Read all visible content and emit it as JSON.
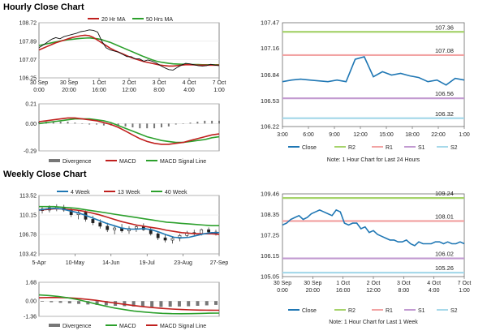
{
  "titles": {
    "hourly": "Hourly Close Chart",
    "weekly": "Weekly Close Chart"
  },
  "colors": {
    "price": "#111111",
    "red": "#c0201e",
    "green": "#2ca02c",
    "blue": "#1f77b4",
    "close_line": "#1f77b4",
    "r2": "#a6d36b",
    "r1": "#f2a3a3",
    "s1": "#c29ad1",
    "s2": "#a7d9ea",
    "divergence": "#777777"
  },
  "chart_data": [
    {
      "id": "hourly-price",
      "type": "line",
      "legend": [
        "20 Hr MA",
        "50 Hrs MA"
      ],
      "yticks": [
        "108.72",
        "107.89",
        "107.07",
        "106.25"
      ],
      "ylim": [
        106.25,
        108.72
      ],
      "xticks": [
        [
          "30 Sep",
          "0:00"
        ],
        [
          "30 Sep",
          "20:00"
        ],
        [
          "1 Oct",
          "16:00"
        ],
        [
          "2 Oct",
          "12:00"
        ],
        [
          "3 Oct",
          "8:00"
        ],
        [
          "4 Oct",
          "4:00"
        ],
        [
          "7 Oct",
          "1:00"
        ]
      ],
      "price": [
        107.6,
        107.72,
        107.85,
        107.98,
        108.05,
        108.0,
        108.1,
        108.15,
        108.2,
        108.25,
        108.32,
        108.35,
        108.4,
        108.38,
        108.3,
        107.9,
        107.6,
        107.5,
        107.45,
        107.4,
        107.3,
        107.2,
        107.2,
        107.1,
        107.1,
        107.0,
        107.05,
        107.0,
        106.92,
        106.8,
        106.7,
        106.62,
        106.6,
        106.72,
        106.82,
        106.9,
        106.88,
        106.84,
        106.8,
        106.78,
        106.8,
        106.86,
        106.82,
        106.8
      ],
      "ma20": [
        107.5,
        107.58,
        107.66,
        107.74,
        107.82,
        107.88,
        107.94,
        108.0,
        108.06,
        108.1,
        108.14,
        108.16,
        108.14,
        108.06,
        107.94,
        107.82,
        107.7,
        107.58,
        107.48,
        107.4,
        107.32,
        107.24,
        107.16,
        107.1,
        107.04,
        106.98,
        106.94,
        106.9,
        106.86,
        106.82,
        106.8,
        106.78,
        106.78,
        106.8,
        106.82,
        106.84,
        106.84,
        106.83,
        106.82,
        106.82,
        106.82,
        106.82,
        106.82,
        106.82
      ],
      "ma50": [
        107.7,
        107.74,
        107.78,
        107.82,
        107.86,
        107.9,
        107.93,
        107.96,
        107.98,
        108.0,
        108.02,
        108.03,
        108.04,
        108.02,
        108.0,
        107.96,
        107.9,
        107.84,
        107.76,
        107.68,
        107.6,
        107.52,
        107.44,
        107.36,
        107.28,
        107.2,
        107.13,
        107.06,
        107.0,
        106.96,
        106.93,
        106.9,
        106.88,
        106.87,
        106.86,
        106.86,
        106.85,
        106.85,
        106.85,
        106.84,
        106.84,
        106.84,
        106.84,
        106.84
      ]
    },
    {
      "id": "hourly-macd",
      "type": "line",
      "legend": [
        "Divergence",
        "MACD",
        "MACD Signal Line"
      ],
      "yticks": [
        "0.21",
        "0.00",
        "-0.29"
      ],
      "ylim": [
        -0.29,
        0.21
      ],
      "macd": [
        0.02,
        0.03,
        0.04,
        0.05,
        0.06,
        0.06,
        0.05,
        0.04,
        0.03,
        0.01,
        -0.01,
        -0.04,
        -0.08,
        -0.12,
        -0.16,
        -0.19,
        -0.21,
        -0.22,
        -0.22,
        -0.21,
        -0.2,
        -0.18,
        -0.16,
        -0.14,
        -0.12,
        -0.11
      ],
      "signal": [
        0.0,
        0.01,
        0.02,
        0.03,
        0.04,
        0.05,
        0.05,
        0.05,
        0.04,
        0.03,
        0.01,
        -0.02,
        -0.05,
        -0.08,
        -0.11,
        -0.14,
        -0.16,
        -0.18,
        -0.19,
        -0.2,
        -0.2,
        -0.19,
        -0.18,
        -0.17,
        -0.15,
        -0.14
      ],
      "divergence": [
        0.02,
        0.02,
        0.02,
        0.02,
        0.02,
        0.01,
        0.0,
        -0.01,
        -0.01,
        -0.02,
        -0.02,
        -0.02,
        -0.03,
        -0.04,
        -0.05,
        -0.05,
        -0.05,
        -0.04,
        -0.03,
        -0.01,
        0.0,
        0.01,
        0.02,
        0.03,
        0.03,
        0.03
      ]
    },
    {
      "id": "hourly-sr",
      "type": "line",
      "yticks": [
        "107.47",
        "107.16",
        "106.84",
        "106.53",
        "106.22"
      ],
      "ylim": [
        106.22,
        107.47
      ],
      "xticks": [
        "3:00",
        "6:00",
        "9:00",
        "12:00",
        "15:00",
        "18:00",
        "22:00",
        "1:00"
      ],
      "close": [
        106.76,
        106.78,
        106.79,
        106.78,
        106.77,
        106.76,
        106.78,
        106.76,
        107.03,
        107.06,
        106.82,
        106.88,
        106.84,
        106.86,
        106.83,
        106.81,
        106.76,
        106.78,
        106.72,
        106.8,
        106.78
      ],
      "levels": [
        {
          "name": "R2",
          "value": 107.36,
          "label": "107.36"
        },
        {
          "name": "R1",
          "value": 107.08,
          "label": "107.08"
        },
        {
          "name": "S1",
          "value": 106.56,
          "label": "106.56"
        },
        {
          "name": "S2",
          "value": 106.32,
          "label": "106.32"
        }
      ],
      "legend": [
        "Close",
        "R2",
        "R1",
        "S1",
        "S2"
      ],
      "note": "Note: 1 Hour Chart for Last 24 Hours"
    },
    {
      "id": "weekly-price",
      "type": "line",
      "legend": [
        "4 Week",
        "13 Week",
        "40 Week"
      ],
      "yticks": [
        "113.52",
        "110.15",
        "106.78",
        "103.42"
      ],
      "ylim": [
        103.42,
        113.52
      ],
      "xticks": [
        "5-Apr",
        "10-May",
        "14-Jun",
        "19-Jul",
        "23-Aug",
        "27-Sep"
      ],
      "candles": [
        [
          111.2,
          111.6,
          110.4,
          110.9
        ],
        [
          111.0,
          111.8,
          110.6,
          111.4
        ],
        [
          111.3,
          112.0,
          110.8,
          111.5
        ],
        [
          111.4,
          111.9,
          110.7,
          111.0
        ],
        [
          111.0,
          111.4,
          109.8,
          110.2
        ],
        [
          110.2,
          111.0,
          109.4,
          110.6
        ],
        [
          110.6,
          110.9,
          109.0,
          109.4
        ],
        [
          109.4,
          110.0,
          108.4,
          108.8
        ],
        [
          108.8,
          109.4,
          107.8,
          108.2
        ],
        [
          108.2,
          108.8,
          107.2,
          107.6
        ],
        [
          107.6,
          108.4,
          106.8,
          107.9
        ],
        [
          107.9,
          108.6,
          107.1,
          107.4
        ],
        [
          107.4,
          108.2,
          106.9,
          107.8
        ],
        [
          107.8,
          108.4,
          107.2,
          108.1
        ],
        [
          108.1,
          108.7,
          107.4,
          107.6
        ],
        [
          107.6,
          108.1,
          106.6,
          106.9
        ],
        [
          106.9,
          107.3,
          105.8,
          106.2
        ],
        [
          106.2,
          106.8,
          105.4,
          105.8
        ],
        [
          105.8,
          106.4,
          105.2,
          106.1
        ],
        [
          106.1,
          106.9,
          105.6,
          106.6
        ],
        [
          106.6,
          107.4,
          106.2,
          107.1
        ],
        [
          107.1,
          107.6,
          106.6,
          106.9
        ],
        [
          106.9,
          107.8,
          106.6,
          107.6
        ],
        [
          107.6,
          108.0,
          107.0,
          107.2
        ],
        [
          107.2,
          107.6,
          106.6,
          106.9
        ]
      ],
      "w4": [
        111.0,
        111.2,
        111.3,
        111.2,
        110.9,
        110.6,
        110.2,
        109.7,
        109.2,
        108.7,
        108.3,
        107.9,
        107.7,
        107.7,
        107.8,
        107.6,
        107.2,
        106.7,
        106.3,
        106.2,
        106.3,
        106.6,
        106.9,
        107.1,
        107.1
      ],
      "w13": [
        111.0,
        111.1,
        111.2,
        111.2,
        111.1,
        111.0,
        110.8,
        110.5,
        110.2,
        109.8,
        109.4,
        109.0,
        108.7,
        108.4,
        108.2,
        108.0,
        107.8,
        107.5,
        107.3,
        107.1,
        107.0,
        106.9,
        106.9,
        106.9,
        106.8
      ],
      "w40": [
        111.6,
        111.6,
        111.6,
        111.5,
        111.4,
        111.3,
        111.1,
        110.9,
        110.7,
        110.5,
        110.3,
        110.1,
        109.9,
        109.7,
        109.5,
        109.3,
        109.1,
        108.9,
        108.8,
        108.7,
        108.6,
        108.5,
        108.4,
        108.3,
        108.3
      ]
    },
    {
      "id": "weekly-macd",
      "type": "line",
      "legend": [
        "Divergence",
        "MACD",
        "MACD Signal Line"
      ],
      "yticks": [
        "1.68",
        "0.00",
        "-1.36"
      ],
      "ylim": [
        -1.36,
        1.68
      ],
      "macd": [
        0.55,
        0.5,
        0.42,
        0.3,
        0.15,
        -0.05,
        -0.25,
        -0.45,
        -0.62,
        -0.76,
        -0.88,
        -0.97,
        -1.04,
        -1.09,
        -1.12,
        -1.13,
        -1.12,
        -1.1,
        -1.08,
        -1.07
      ],
      "signal": [
        0.3,
        0.32,
        0.32,
        0.3,
        0.25,
        0.17,
        0.07,
        -0.05,
        -0.17,
        -0.29,
        -0.4,
        -0.5,
        -0.58,
        -0.65,
        -0.71,
        -0.75,
        -0.78,
        -0.8,
        -0.81,
        -0.82
      ],
      "divergence": [
        -0.05,
        -0.1,
        -0.15,
        -0.2,
        -0.25,
        -0.3,
        -0.34,
        -0.38,
        -0.42,
        -0.45,
        -0.48,
        -0.5,
        -0.52,
        -0.52,
        -0.5,
        -0.48,
        -0.46,
        -0.42,
        -0.38,
        -0.34
      ]
    },
    {
      "id": "weekly-sr",
      "type": "line",
      "yticks": [
        "109.46",
        "108.35",
        "107.25",
        "106.15",
        "105.05"
      ],
      "ylim": [
        105.05,
        109.46
      ],
      "xticks": [
        [
          "30 Sep",
          "0:00"
        ],
        [
          "30 Sep",
          "20:00"
        ],
        [
          "1 Oct",
          "16:00"
        ],
        [
          "2 Oct",
          "12:00"
        ],
        [
          "3 Oct",
          "8:00"
        ],
        [
          "4 Oct",
          "4:00"
        ],
        [
          "7 Oct",
          "1:00"
        ]
      ],
      "close": [
        107.8,
        107.9,
        108.1,
        108.2,
        108.3,
        108.1,
        108.2,
        108.4,
        108.5,
        108.6,
        108.5,
        108.4,
        108.3,
        108.6,
        108.5,
        107.9,
        107.8,
        107.9,
        107.9,
        107.6,
        107.7,
        107.4,
        107.5,
        107.3,
        107.2,
        107.1,
        107.0,
        107.0,
        106.9,
        106.9,
        107.0,
        106.8,
        106.7,
        106.9,
        106.8,
        106.8,
        106.8,
        106.9,
        106.9,
        106.8,
        106.9,
        106.8,
        106.8,
        106.9,
        106.8
      ],
      "levels": [
        {
          "name": "R2",
          "value": 109.24,
          "label": "109.24"
        },
        {
          "name": "R1",
          "value": 108.01,
          "label": "108.01"
        },
        {
          "name": "S1",
          "value": 106.02,
          "label": "106.02"
        },
        {
          "name": "S2",
          "value": 105.26,
          "label": "105.26"
        }
      ],
      "legend": [
        "Close",
        "R2",
        "R1",
        "S1",
        "S2"
      ],
      "note": "Note: 1 Hour Chart for Last 1 Week"
    }
  ]
}
